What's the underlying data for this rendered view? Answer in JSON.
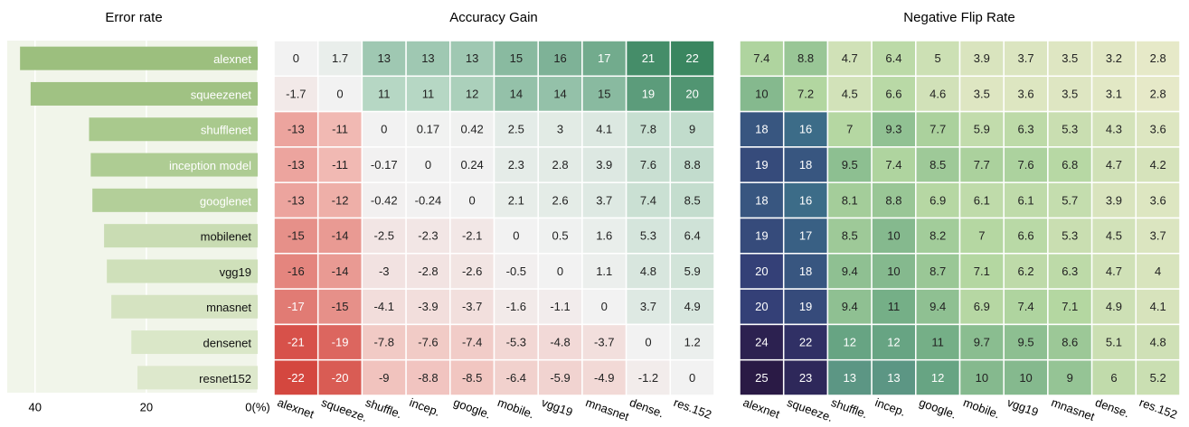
{
  "chart_data": [
    {
      "type": "bar",
      "orientation": "horizontal",
      "title": "Error rate",
      "categories": [
        "alexnet",
        "squeezenet",
        "shufflenet",
        "inception model",
        "googlenet",
        "mobilenet",
        "vgg19",
        "mnasnet",
        "densenet",
        "resnet152"
      ],
      "values": [
        42.7,
        40.8,
        30.3,
        30.0,
        29.7,
        27.6,
        27.1,
        26.3,
        22.7,
        21.6
      ],
      "colors": [
        "#9cbf7e",
        "#a0c283",
        "#a9c98d",
        "#aecc93",
        "#b3cf99",
        "#c9dcb3",
        "#cfe0ba",
        "#d5e3c1",
        "#dae7c8",
        "#dde8cc"
      ],
      "xlim": [
        45,
        0
      ],
      "xticks": [
        40,
        20,
        {
          "value": 0,
          "label": "0(%)"
        }
      ],
      "grid": true
    },
    {
      "type": "heatmap",
      "title": "Accuracy Gain",
      "x": [
        "alexnet",
        "squeeze.",
        "shuffle.",
        "incep.",
        "google.",
        "mobile.",
        "vgg19",
        "mnasnet",
        "dense.",
        "res.152"
      ],
      "values": [
        [
          0,
          1.7,
          13,
          13,
          13,
          15,
          16,
          17,
          21,
          22
        ],
        [
          -1.7,
          0,
          11,
          11,
          12,
          14,
          14,
          15,
          19,
          20
        ],
        [
          -13,
          -11,
          0,
          0.17,
          0.42,
          2.5,
          3,
          4.1,
          7.8,
          9
        ],
        [
          -13,
          -11,
          -0.17,
          0,
          0.24,
          2.3,
          2.8,
          3.9,
          7.6,
          8.8
        ],
        [
          -13,
          -12,
          -0.42,
          -0.24,
          0,
          2.1,
          2.6,
          3.7,
          7.4,
          8.5
        ],
        [
          -15,
          -14,
          -2.5,
          -2.3,
          -2.1,
          0,
          0.5,
          1.6,
          5.3,
          6.4
        ],
        [
          -16,
          -14,
          -3,
          -2.8,
          -2.6,
          -0.5,
          0,
          1.1,
          4.8,
          5.9
        ],
        [
          -17,
          -15,
          -4.1,
          -3.9,
          -3.7,
          -1.6,
          -1.1,
          0,
          3.7,
          4.9
        ],
        [
          -21,
          -19,
          -7.8,
          -7.6,
          -7.4,
          -5.3,
          -4.8,
          -3.7,
          0,
          1.2
        ],
        [
          -22,
          -20,
          -9,
          -8.8,
          -8.5,
          -6.4,
          -5.9,
          -4.9,
          -1.2,
          0
        ]
      ],
      "colormap": [
        "#d4473f",
        "#f1b9b3",
        "#f2f2f2",
        "#b6d7c4",
        "#3a8660"
      ],
      "clim": [
        -22,
        22
      ]
    },
    {
      "type": "heatmap",
      "title": "Negative Flip Rate",
      "x": [
        "alexnet",
        "squeeze.",
        "shuffle.",
        "incep.",
        "google.",
        "mobile.",
        "vgg19",
        "mnasnet",
        "dense.",
        "res.152"
      ],
      "values": [
        [
          7.4,
          8.8,
          4.7,
          6.4,
          5,
          3.9,
          3.7,
          3.5,
          3.2,
          2.8
        ],
        [
          10,
          7.2,
          4.5,
          6.6,
          4.6,
          3.5,
          3.6,
          3.5,
          3.1,
          2.8
        ],
        [
          18,
          16,
          7,
          9.3,
          7.7,
          5.9,
          6.3,
          5.3,
          4.3,
          3.6
        ],
        [
          19,
          18,
          9.5,
          7.4,
          8.5,
          7.7,
          7.6,
          6.8,
          4.7,
          4.2
        ],
        [
          18,
          16,
          8.1,
          8.8,
          6.9,
          6.1,
          6.1,
          5.7,
          3.9,
          3.6
        ],
        [
          19,
          17,
          8.5,
          10,
          8.2,
          7,
          6.6,
          5.3,
          4.5,
          3.7
        ],
        [
          20,
          18,
          9.4,
          10,
          8.7,
          7.1,
          6.2,
          6.3,
          4.7,
          4
        ],
        [
          20,
          19,
          9.4,
          11,
          9.4,
          6.9,
          7.4,
          7.1,
          4.9,
          4.1
        ],
        [
          24,
          22,
          12,
          12,
          11,
          9.7,
          9.5,
          8.6,
          5.1,
          4.8
        ],
        [
          25,
          23,
          13,
          13,
          12,
          10,
          10,
          9,
          6,
          5.2
        ]
      ],
      "colormap": [
        "#e6e9c8",
        "#b2d6a0",
        "#6aa883",
        "#3b6a88",
        "#333a74",
        "#2a1a45"
      ],
      "clim": [
        2.8,
        25
      ]
    }
  ]
}
